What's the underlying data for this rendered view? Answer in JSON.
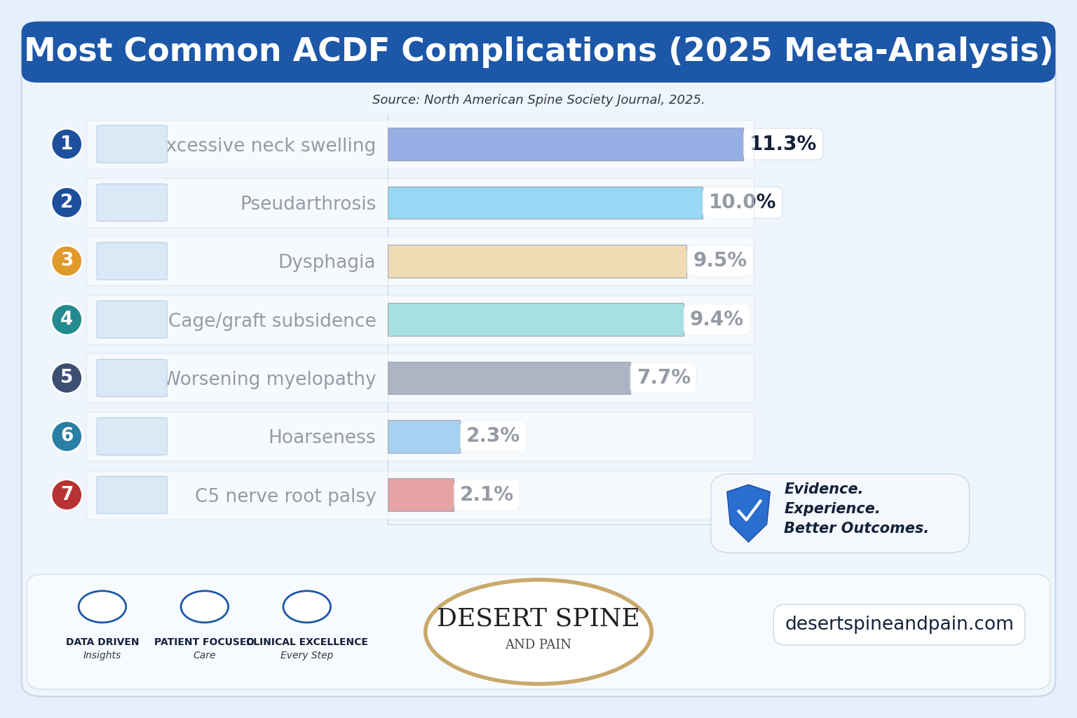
{
  "chart_data": {
    "type": "bar",
    "orientation": "horizontal",
    "title": "Most Common ACDF Complications (2025 Meta-Analysis)",
    "subtitle": "Source: North American Spine Society Journal, 2025.",
    "categories": [
      "Excessive neck swelling",
      "Pseudarthrosis",
      "Dysphagia",
      "Cage/graft subsidence",
      "Worsening myelopathy",
      "Hoarseness",
      "C5 nerve root palsy"
    ],
    "values": [
      11.3,
      10.0,
      9.5,
      9.4,
      7.7,
      2.3,
      2.1
    ],
    "value_labels": [
      "11.3%",
      "10.0%",
      "9.5%",
      "9.4%",
      "7.7%",
      "2.3%",
      "2.1%"
    ],
    "colors": [
      "#1a4fc4",
      "#1fa8e8",
      "#e0b05a",
      "#3bbdbd",
      "#4a5a7e",
      "#3d9be0",
      "#c8373a"
    ],
    "ranks": [
      1,
      2,
      3,
      4,
      5,
      6,
      7
    ],
    "data_labels": true,
    "tick_labels": "y",
    "grid": false,
    "xlim": [
      0,
      13
    ],
    "xticks": [],
    "annotations": [
      "Evidence.",
      "Experience.",
      "Better Outcomes."
    ],
    "footer": {
      "badges": [
        {
          "title": "DATA DRIVEN",
          "subtitle": "Insights"
        },
        {
          "title": "PATIENT FOCUSED",
          "subtitle": "Care"
        },
        {
          "title": "CLINICAL EXCELLENCE",
          "subtitle": "Every Step"
        }
      ],
      "logo": [
        "DESERT SPINE",
        "AND PAIN"
      ],
      "url": "desertspineandpain.com"
    }
  }
}
